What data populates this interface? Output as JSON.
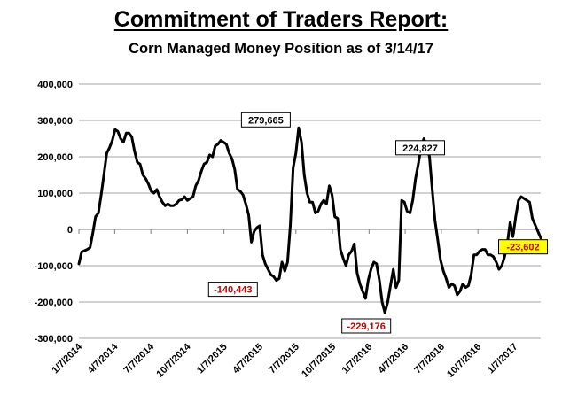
{
  "chart_data": {
    "type": "line",
    "title": "Commitment of Traders Report:",
    "subtitle": "Corn Managed Money Position as of 3/14/17",
    "xlabel": "",
    "ylabel": "",
    "ylim": [
      -300000,
      400000
    ],
    "yticks": [
      400000,
      300000,
      200000,
      100000,
      0,
      -100000,
      -200000,
      -300000
    ],
    "ytick_labels": [
      "400,000",
      "300,000",
      "200,000",
      "100,000",
      "0",
      "-100,000",
      "-200,000",
      "-300,000"
    ],
    "xlim": [
      "2014-01-07",
      "2017-03-14"
    ],
    "xticks": [
      "2014-01-07",
      "2014-04-07",
      "2014-07-07",
      "2014-10-07",
      "2015-01-07",
      "2015-04-07",
      "2015-07-07",
      "2015-10-07",
      "2016-01-07",
      "2016-04-07",
      "2016-07-07",
      "2016-10-07",
      "2017-01-07"
    ],
    "xtick_labels": [
      "1/7/2014",
      "4/7/2014",
      "7/7/2014",
      "10/7/2014",
      "1/7/2015",
      "4/7/2015",
      "7/7/2015",
      "10/7/2015",
      "1/7/2016",
      "4/7/2016",
      "7/7/2016",
      "10/7/2016",
      "1/7/2017"
    ],
    "grid": true,
    "legend": "none",
    "series": [
      {
        "color": "#000000",
        "points": [
          [
            "2014-01-07",
            -95000
          ],
          [
            "2014-01-14",
            -62000
          ],
          [
            "2014-01-28",
            -55000
          ],
          [
            "2014-02-04",
            -50000
          ],
          [
            "2014-02-11",
            -10000
          ],
          [
            "2014-02-18",
            35000
          ],
          [
            "2014-02-25",
            45000
          ],
          [
            "2014-03-04",
            95000
          ],
          [
            "2014-03-11",
            150000
          ],
          [
            "2014-03-18",
            210000
          ],
          [
            "2014-03-25",
            225000
          ],
          [
            "2014-04-01",
            245000
          ],
          [
            "2014-04-08",
            275000
          ],
          [
            "2014-04-15",
            270000
          ],
          [
            "2014-04-22",
            250000
          ],
          [
            "2014-04-29",
            240000
          ],
          [
            "2014-05-06",
            265000
          ],
          [
            "2014-05-13",
            265000
          ],
          [
            "2014-05-20",
            255000
          ],
          [
            "2014-05-27",
            215000
          ],
          [
            "2014-06-03",
            185000
          ],
          [
            "2014-06-10",
            180000
          ],
          [
            "2014-06-17",
            150000
          ],
          [
            "2014-06-24",
            140000
          ],
          [
            "2014-07-01",
            125000
          ],
          [
            "2014-07-08",
            105000
          ],
          [
            "2014-07-15",
            100000
          ],
          [
            "2014-07-22",
            110000
          ],
          [
            "2014-07-29",
            90000
          ],
          [
            "2014-08-05",
            75000
          ],
          [
            "2014-08-12",
            65000
          ],
          [
            "2014-08-19",
            70000
          ],
          [
            "2014-08-26",
            65000
          ],
          [
            "2014-09-02",
            65000
          ],
          [
            "2014-09-09",
            70000
          ],
          [
            "2014-09-16",
            80000
          ],
          [
            "2014-09-23",
            82000
          ],
          [
            "2014-09-30",
            90000
          ],
          [
            "2014-10-07",
            80000
          ],
          [
            "2014-10-14",
            85000
          ],
          [
            "2014-10-21",
            90000
          ],
          [
            "2014-10-28",
            120000
          ],
          [
            "2014-11-04",
            135000
          ],
          [
            "2014-11-11",
            160000
          ],
          [
            "2014-11-18",
            180000
          ],
          [
            "2014-11-25",
            185000
          ],
          [
            "2014-12-02",
            205000
          ],
          [
            "2014-12-09",
            200000
          ],
          [
            "2014-12-16",
            230000
          ],
          [
            "2014-12-23",
            235000
          ],
          [
            "2014-12-30",
            245000
          ],
          [
            "2015-01-06",
            240000
          ],
          [
            "2015-01-13",
            235000
          ],
          [
            "2015-01-20",
            210000
          ],
          [
            "2015-01-27",
            195000
          ],
          [
            "2015-02-03",
            165000
          ],
          [
            "2015-02-10",
            110000
          ],
          [
            "2015-02-17",
            105000
          ],
          [
            "2015-02-24",
            95000
          ],
          [
            "2015-03-03",
            70000
          ],
          [
            "2015-03-10",
            40000
          ],
          [
            "2015-03-17",
            -35000
          ],
          [
            "2015-03-24",
            -5000
          ],
          [
            "2015-03-31",
            5000
          ],
          [
            "2015-04-07",
            10000
          ],
          [
            "2015-04-14",
            -70000
          ],
          [
            "2015-04-21",
            -95000
          ],
          [
            "2015-04-28",
            -110000
          ],
          [
            "2015-05-05",
            -125000
          ],
          [
            "2015-05-12",
            -130000
          ],
          [
            "2015-05-19",
            -140443
          ],
          [
            "2015-05-26",
            -135000
          ],
          [
            "2015-06-02",
            -90000
          ],
          [
            "2015-06-09",
            -115000
          ],
          [
            "2015-06-16",
            -90000
          ],
          [
            "2015-06-23",
            10000
          ],
          [
            "2015-06-30",
            170000
          ],
          [
            "2015-07-07",
            210000
          ],
          [
            "2015-07-14",
            279665
          ],
          [
            "2015-07-21",
            240000
          ],
          [
            "2015-07-28",
            150000
          ],
          [
            "2015-08-04",
            100000
          ],
          [
            "2015-08-11",
            75000
          ],
          [
            "2015-08-18",
            75000
          ],
          [
            "2015-08-25",
            45000
          ],
          [
            "2015-09-01",
            50000
          ],
          [
            "2015-09-08",
            70000
          ],
          [
            "2015-09-15",
            80000
          ],
          [
            "2015-09-22",
            70000
          ],
          [
            "2015-09-29",
            120000
          ],
          [
            "2015-10-06",
            95000
          ],
          [
            "2015-10-13",
            35000
          ],
          [
            "2015-10-20",
            30000
          ],
          [
            "2015-10-27",
            -55000
          ],
          [
            "2015-11-03",
            -80000
          ],
          [
            "2015-11-10",
            -100000
          ],
          [
            "2015-11-17",
            -70000
          ],
          [
            "2015-11-24",
            -60000
          ],
          [
            "2015-12-01",
            -40000
          ],
          [
            "2015-12-08",
            -120000
          ],
          [
            "2015-12-15",
            -150000
          ],
          [
            "2015-12-22",
            -170000
          ],
          [
            "2015-12-29",
            -190000
          ],
          [
            "2016-01-05",
            -140000
          ],
          [
            "2016-01-12",
            -110000
          ],
          [
            "2016-01-19",
            -90000
          ],
          [
            "2016-01-26",
            -95000
          ],
          [
            "2016-02-02",
            -140000
          ],
          [
            "2016-02-09",
            -200000
          ],
          [
            "2016-02-16",
            -229176
          ],
          [
            "2016-02-23",
            -200000
          ],
          [
            "2016-03-01",
            -155000
          ],
          [
            "2016-03-08",
            -110000
          ],
          [
            "2016-03-15",
            -160000
          ],
          [
            "2016-03-22",
            -140000
          ],
          [
            "2016-03-29",
            80000
          ],
          [
            "2016-04-05",
            75000
          ],
          [
            "2016-04-12",
            50000
          ],
          [
            "2016-04-19",
            45000
          ],
          [
            "2016-04-26",
            80000
          ],
          [
            "2016-05-03",
            140000
          ],
          [
            "2016-05-10",
            180000
          ],
          [
            "2016-05-17",
            224827
          ],
          [
            "2016-05-24",
            250000
          ],
          [
            "2016-05-31",
            230000
          ],
          [
            "2016-06-07",
            200000
          ],
          [
            "2016-06-14",
            110000
          ],
          [
            "2016-06-21",
            25000
          ],
          [
            "2016-06-28",
            -30000
          ],
          [
            "2016-07-05",
            -85000
          ],
          [
            "2016-07-12",
            -115000
          ],
          [
            "2016-07-19",
            -135000
          ],
          [
            "2016-07-26",
            -160000
          ],
          [
            "2016-08-02",
            -150000
          ],
          [
            "2016-08-09",
            -155000
          ],
          [
            "2016-08-16",
            -180000
          ],
          [
            "2016-08-23",
            -170000
          ],
          [
            "2016-08-30",
            -150000
          ],
          [
            "2016-09-06",
            -160000
          ],
          [
            "2016-09-13",
            -155000
          ],
          [
            "2016-09-20",
            -125000
          ],
          [
            "2016-09-27",
            -70000
          ],
          [
            "2016-10-04",
            -70000
          ],
          [
            "2016-10-11",
            -60000
          ],
          [
            "2016-10-18",
            -55000
          ],
          [
            "2016-10-25",
            -55000
          ],
          [
            "2016-11-01",
            -70000
          ],
          [
            "2016-11-08",
            -70000
          ],
          [
            "2016-11-15",
            -75000
          ],
          [
            "2016-11-22",
            -90000
          ],
          [
            "2016-11-29",
            -110000
          ],
          [
            "2016-12-06",
            -100000
          ],
          [
            "2016-12-13",
            -75000
          ],
          [
            "2016-12-20",
            -40000
          ],
          [
            "2016-12-27",
            20000
          ],
          [
            "2017-01-03",
            -20000
          ],
          [
            "2017-01-10",
            35000
          ],
          [
            "2017-01-17",
            80000
          ],
          [
            "2017-01-24",
            90000
          ],
          [
            "2017-01-31",
            85000
          ],
          [
            "2017-02-07",
            80000
          ],
          [
            "2017-02-14",
            75000
          ],
          [
            "2017-02-21",
            30000
          ],
          [
            "2017-03-14",
            -23602
          ]
        ]
      }
    ],
    "annotations": [
      {
        "text": "279,665",
        "x": "2015-07-14",
        "y": 279665,
        "text_color": "#000000",
        "background": "#ffffff"
      },
      {
        "text": "-140,443",
        "x": "2015-05-19",
        "y": -140443,
        "text_color": "#c00000",
        "background": "#ffffff"
      },
      {
        "text": "-229,176",
        "x": "2016-02-16",
        "y": -229176,
        "text_color": "#c00000",
        "background": "#ffffff"
      },
      {
        "text": "224,827",
        "x": "2016-05-17",
        "y": 224827,
        "text_color": "#000000",
        "background": "#ffffff"
      },
      {
        "text": "-23,602",
        "x": "2017-03-14",
        "y": -23602,
        "text_color": "#c00000",
        "background": "#ffff00"
      }
    ]
  }
}
